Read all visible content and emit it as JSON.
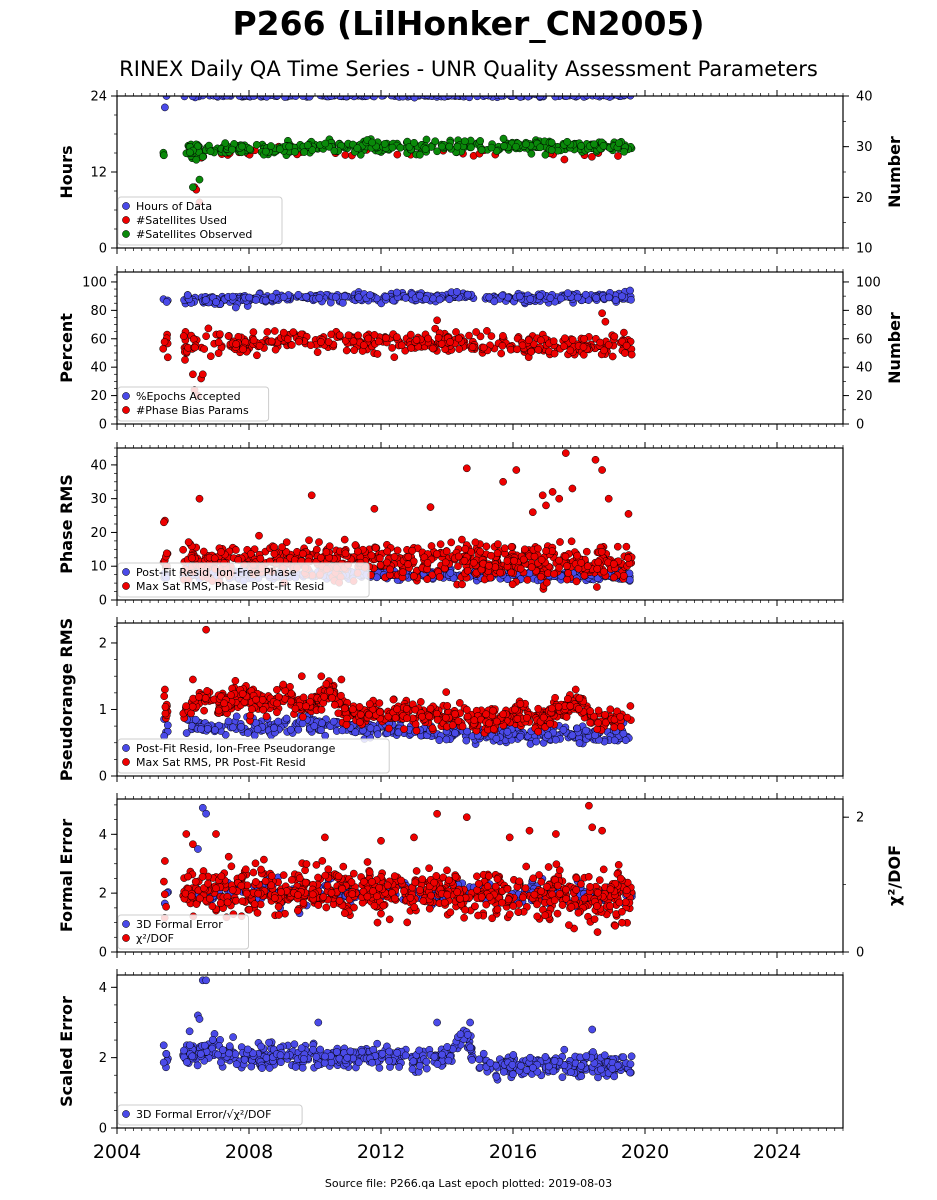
{
  "title": "P266 (LilHonker_CN2005)",
  "subtitle": "RINEX Daily QA Time Series - UNR Quality Assessment Parameters",
  "source_note": "Source file: P266.qa Last epoch plotted: 2019-08-03",
  "colors": {
    "blue": "#4a4ae8",
    "red": "#ee0000",
    "green": "#0a8a0a",
    "edge": "#000000"
  },
  "chart_data": [
    {
      "type": "scatter",
      "ylabel": "Hours",
      "ylabel_right": "Number",
      "xlim": [
        2004,
        2026
      ],
      "ylim": [
        0,
        24
      ],
      "yticks": [
        0,
        12,
        24
      ],
      "ylim_right": [
        10,
        40
      ],
      "yticks_right": [
        10,
        20,
        30,
        40
      ],
      "legend_position": "lower-left",
      "series": [
        {
          "name": "Hours of Data",
          "color": "blue",
          "axis": "left",
          "start": 2005.4,
          "end": 2019.59,
          "gap": [
            2005.55,
            2006.0
          ],
          "base": 24.0,
          "noise": 0.1,
          "n": 220,
          "extra": [
            [
              2005.45,
              22.2
            ],
            [
              2005.5,
              24.0
            ],
            [
              2009.9,
              15.5
            ]
          ]
        },
        {
          "name": "#Satellites Used",
          "color": "red",
          "axis": "right",
          "start": 2005.4,
          "end": 2019.59,
          "gap": [
            2005.55,
            2006.0
          ],
          "base": 28.6,
          "noise": 0.5,
          "n": 40,
          "extra": [
            [
              2006.35,
              22.0
            ],
            [
              2006.4,
              21.5
            ],
            [
              2006.5,
              19.0
            ],
            [
              2008.9,
              30.0
            ],
            [
              2009.3,
              30.0
            ]
          ]
        },
        {
          "name": "#Satellites Observed",
          "color": "green",
          "axis": "right",
          "knots": [
            [
              2005.4,
              29.0
            ],
            [
              2006.0,
              29.2
            ],
            [
              2007.0,
              29.5
            ],
            [
              2008.0,
              29.6
            ],
            [
              2009.0,
              29.4
            ],
            [
              2010.0,
              30.0
            ],
            [
              2011.0,
              30.1
            ],
            [
              2013.0,
              30.0
            ],
            [
              2015.0,
              30.0
            ],
            [
              2017.0,
              30.1
            ],
            [
              2019.6,
              30.0
            ]
          ],
          "gap": [
            2005.55,
            2006.0
          ],
          "noise": 0.6,
          "n": 420,
          "extra": [
            [
              2006.3,
              22.0
            ],
            [
              2006.5,
              23.5
            ],
            [
              2006.6,
              28.0
            ],
            [
              2005.42,
              28.3
            ]
          ]
        }
      ]
    },
    {
      "type": "scatter",
      "ylabel": "Percent",
      "ylabel_right": "Number",
      "xlim": [
        2004,
        2026
      ],
      "ylim": [
        0,
        107
      ],
      "yticks": [
        0,
        20,
        40,
        60,
        80,
        100
      ],
      "ylim_right": [
        0,
        107
      ],
      "yticks_right": [
        0,
        20,
        40,
        60,
        80,
        100
      ],
      "legend_position": "lower-left",
      "series": [
        {
          "name": "%Epochs Accepted",
          "color": "blue",
          "axis": "left",
          "knots": [
            [
              2005.4,
              88.0
            ],
            [
              2006.0,
              88.0
            ],
            [
              2007.0,
              87.0
            ],
            [
              2008.0,
              88.0
            ],
            [
              2010.0,
              89.0
            ],
            [
              2012.0,
              89.0
            ],
            [
              2014.0,
              90.0
            ],
            [
              2016.0,
              89.0
            ],
            [
              2018.0,
              89.0
            ],
            [
              2019.6,
              90.0
            ]
          ],
          "gap": [
            2005.55,
            2006.0
          ],
          "noise": 1.6,
          "n": 420,
          "extra": [
            [
              2019.55,
              94.0
            ],
            [
              2014.3,
              93.0
            ],
            [
              2007.6,
              82.0
            ]
          ]
        },
        {
          "name": "#Phase Bias Params",
          "color": "red",
          "axis": "right",
          "knots": [
            [
              2005.4,
              55.0
            ],
            [
              2006.0,
              56.0
            ],
            [
              2008.0,
              57.0
            ],
            [
              2010.0,
              58.0
            ],
            [
              2012.0,
              58.0
            ],
            [
              2014.0,
              58.0
            ],
            [
              2016.0,
              56.0
            ],
            [
              2018.0,
              55.0
            ],
            [
              2019.6,
              55.0
            ]
          ],
          "gap": [
            2005.55,
            2006.0
          ],
          "noise": 4.0,
          "n": 420,
          "extra": [
            [
              2006.3,
              35.0
            ],
            [
              2006.35,
              24.0
            ],
            [
              2006.45,
              20.0
            ],
            [
              2006.55,
              32.0
            ],
            [
              2006.6,
              35.0
            ],
            [
              2018.7,
              78.0
            ],
            [
              2018.8,
              72.0
            ],
            [
              2013.7,
              73.0
            ]
          ]
        }
      ]
    },
    {
      "type": "scatter",
      "ylabel": "Phase RMS",
      "xlim": [
        2004,
        2026
      ],
      "ylim": [
        0,
        45
      ],
      "yticks": [
        0,
        10,
        20,
        30,
        40
      ],
      "legend_position": "lower-left",
      "series": [
        {
          "name": "Post-Fit Resid, Ion-Free Phase",
          "color": "blue",
          "axis": "left",
          "knots": [
            [
              2005.4,
              7.5
            ],
            [
              2008.0,
              7.5
            ],
            [
              2012.0,
              7.5
            ],
            [
              2016.0,
              7.2
            ],
            [
              2019.6,
              7.0
            ]
          ],
          "gap": [
            2005.55,
            2006.0
          ],
          "noise": 0.7,
          "n": 420,
          "extra": []
        },
        {
          "name": "Max Sat RMS, Phase Post-Fit Resid",
          "color": "red",
          "axis": "left",
          "knots": [
            [
              2005.4,
              11.0
            ],
            [
              2008.0,
              11.0
            ],
            [
              2012.0,
              12.0
            ],
            [
              2016.0,
              11.0
            ],
            [
              2019.6,
              10.5
            ]
          ],
          "gap": [
            2005.55,
            2006.0
          ],
          "noise": 2.6,
          "n": 700,
          "extra": [
            [
              2014.6,
              39.0
            ],
            [
              2017.6,
              43.5
            ],
            [
              2018.5,
              41.5
            ],
            [
              2018.7,
              38.5
            ],
            [
              2016.1,
              38.5
            ],
            [
              2009.9,
              31.0
            ],
            [
              2006.5,
              30.0
            ],
            [
              2016.9,
              31.0
            ],
            [
              2017.2,
              32.0
            ],
            [
              2017.4,
              30.0
            ],
            [
              2017.8,
              33.0
            ],
            [
              2018.9,
              30.0
            ],
            [
              2015.7,
              35.0
            ],
            [
              2016.6,
              26.0
            ],
            [
              2017.0,
              28.0
            ],
            [
              2019.5,
              25.5
            ],
            [
              2005.45,
              23.5
            ],
            [
              2005.42,
              23.0
            ],
            [
              2011.8,
              27.0
            ],
            [
              2013.5,
              27.5
            ]
          ]
        }
      ]
    },
    {
      "type": "scatter",
      "ylabel": "Pseudorange RMS",
      "xlim": [
        2004,
        2026
      ],
      "ylim": [
        0,
        2.3
      ],
      "yticks": [
        0,
        1,
        2
      ],
      "legend_position": "lower-left",
      "series": [
        {
          "name": "Post-Fit Resid, Ion-Free Pseudorange",
          "color": "blue",
          "axis": "left",
          "knots": [
            [
              2005.4,
              0.7
            ],
            [
              2006.0,
              0.8
            ],
            [
              2007.0,
              0.75
            ],
            [
              2008.0,
              0.72
            ],
            [
              2009.5,
              0.8
            ],
            [
              2011.0,
              0.72
            ],
            [
              2013.0,
              0.68
            ],
            [
              2015.0,
              0.62
            ],
            [
              2017.0,
              0.62
            ],
            [
              2019.6,
              0.6
            ]
          ],
          "gap": [
            2005.55,
            2006.0
          ],
          "noise": 0.06,
          "n": 420,
          "extra": []
        },
        {
          "name": "Max Sat RMS, PR Post-Fit Resid",
          "color": "red",
          "axis": "left",
          "knots": [
            [
              2005.4,
              1.0
            ],
            [
              2006.0,
              0.95
            ],
            [
              2006.6,
              1.25
            ],
            [
              2007.0,
              1.05
            ],
            [
              2007.8,
              1.2
            ],
            [
              2008.5,
              1.05
            ],
            [
              2009.1,
              1.2
            ],
            [
              2009.8,
              1.0
            ],
            [
              2010.4,
              1.3
            ],
            [
              2011.0,
              0.95
            ],
            [
              2012.5,
              0.95
            ],
            [
              2013.5,
              0.9
            ],
            [
              2015.0,
              0.85
            ],
            [
              2016.0,
              0.9
            ],
            [
              2017.0,
              0.85
            ],
            [
              2017.8,
              1.15
            ],
            [
              2018.5,
              0.85
            ],
            [
              2019.6,
              0.85
            ]
          ],
          "gap": [
            2005.55,
            2006.0
          ],
          "noise": 0.09,
          "n": 700,
          "extra": [
            [
              2006.7,
              2.2
            ],
            [
              2006.3,
              1.45
            ],
            [
              2009.6,
              1.5
            ],
            [
              2010.8,
              1.45
            ],
            [
              2017.9,
              1.3
            ],
            [
              2005.45,
              1.3
            ],
            [
              2005.43,
              1.2
            ]
          ]
        }
      ]
    },
    {
      "type": "scatter",
      "ylabel": "Formal Error",
      "ylabel_right": "χ²/DOF",
      "xlim": [
        2004,
        2026
      ],
      "ylim": [
        0,
        5.2
      ],
      "yticks": [
        0,
        2,
        4
      ],
      "ylim_right": [
        0,
        2.27
      ],
      "yticks_right": [
        0,
        2
      ],
      "legend_position": "lower-left",
      "series": [
        {
          "name": "3D Formal Error",
          "color": "blue",
          "axis": "left",
          "knots": [
            [
              2005.4,
              2.0
            ],
            [
              2008.0,
              2.0
            ],
            [
              2012.0,
              2.0
            ],
            [
              2016.0,
              2.0
            ],
            [
              2019.6,
              2.0
            ]
          ],
          "gap": [
            2005.55,
            2006.0
          ],
          "noise": 0.2,
          "n": 300,
          "extra": [
            [
              2006.6,
              4.9
            ],
            [
              2006.7,
              4.7
            ],
            [
              2006.45,
              3.5
            ]
          ]
        },
        {
          "name": "χ²/DOF",
          "color": "red",
          "axis": "right",
          "knots": [
            [
              2005.4,
              0.9
            ],
            [
              2008.0,
              0.9
            ],
            [
              2012.0,
              0.9
            ],
            [
              2016.0,
              0.85
            ],
            [
              2019.6,
              0.8
            ]
          ],
          "gap": [
            2005.55,
            2006.0
          ],
          "noise": 0.17,
          "n": 750,
          "extra": [
            [
              2018.3,
              2.17
            ],
            [
              2013.7,
              2.05
            ],
            [
              2014.6,
              2.0
            ],
            [
              2006.1,
              1.75
            ],
            [
              2007.0,
              1.75
            ],
            [
              2016.5,
              1.8
            ],
            [
              2017.3,
              1.75
            ],
            [
              2018.7,
              1.8
            ],
            [
              2010.3,
              1.7
            ],
            [
              2012.0,
              1.65
            ],
            [
              2018.4,
              1.85
            ],
            [
              2006.3,
              1.6
            ],
            [
              2005.45,
              1.35
            ],
            [
              2013.0,
              1.7
            ],
            [
              2015.9,
              1.7
            ]
          ]
        }
      ]
    },
    {
      "type": "scatter",
      "ylabel": "Scaled Error",
      "xlim": [
        2004,
        2026
      ],
      "ylim": [
        0,
        4.35
      ],
      "yticks": [
        0,
        2,
        4
      ],
      "legend_position": "lower-left",
      "series": [
        {
          "name": "3D Formal Error/√χ²/DOF",
          "color": "blue",
          "axis": "left",
          "knots": [
            [
              2005.4,
              2.0
            ],
            [
              2006.0,
              2.1
            ],
            [
              2007.0,
              2.2
            ],
            [
              2008.0,
              2.0
            ],
            [
              2010.0,
              2.0
            ],
            [
              2012.0,
              2.0
            ],
            [
              2014.0,
              2.0
            ],
            [
              2014.5,
              2.7
            ],
            [
              2015.0,
              1.8
            ],
            [
              2016.0,
              1.8
            ],
            [
              2018.0,
              1.8
            ],
            [
              2019.6,
              1.75
            ]
          ],
          "gap": [
            2005.55,
            2006.0
          ],
          "noise": 0.17,
          "n": 600,
          "extra": [
            [
              2006.6,
              4.2
            ],
            [
              2006.7,
              4.2
            ],
            [
              2006.45,
              3.2
            ],
            [
              2006.5,
              3.1
            ],
            [
              2006.2,
              2.75
            ],
            [
              2010.1,
              3.0
            ],
            [
              2013.7,
              3.0
            ],
            [
              2014.7,
              3.0
            ],
            [
              2018.4,
              2.8
            ]
          ]
        }
      ]
    }
  ]
}
